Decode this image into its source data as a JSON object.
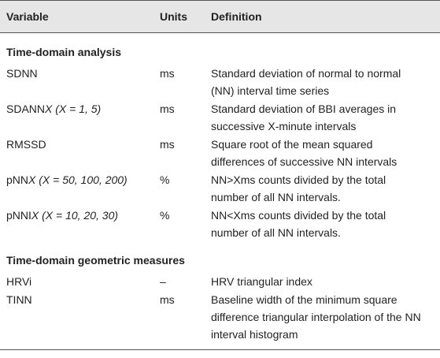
{
  "table": {
    "header": [
      "Variable",
      "Units",
      "Definition"
    ],
    "sections": [
      {
        "title": "Time-domain analysis",
        "rows": [
          {
            "variable": [
              "SDNN"
            ],
            "units": "ms",
            "definition": [
              "Standard deviation of normal to normal",
              "(NN) interval time series"
            ]
          },
          {
            "variable": [
              "SDANN",
              "X (X = 1, 5)"
            ],
            "units": "ms",
            "definition": [
              "Standard deviation of BBI averages in",
              "successive X-minute intervals"
            ]
          },
          {
            "variable": [
              "RMSSD"
            ],
            "units": "ms",
            "definition": [
              "Square root of the mean squared",
              "differences of successive NN intervals"
            ]
          },
          {
            "variable": [
              "pNN",
              "X (X = 50, 100, 200)"
            ],
            "units": "%",
            "definition": [
              "NN>Xms counts divided by the total",
              "number of all NN intervals."
            ]
          },
          {
            "variable": [
              "pNNI",
              "X (X = 10, 20, 30)"
            ],
            "units": "%",
            "definition": [
              "NN<Xms counts divided by the total",
              "number of all NN intervals."
            ]
          }
        ]
      },
      {
        "title": "Time-domain geometric measures",
        "rows": [
          {
            "variable": [
              "HRVi"
            ],
            "units": "–",
            "definition": [
              "HRV triangular index"
            ]
          },
          {
            "variable": [
              "TINN"
            ],
            "units": "ms",
            "definition": [
              "Baseline width of the minimum square",
              "difference triangular interpolation of the NN",
              "interval histogram"
            ]
          }
        ]
      }
    ]
  }
}
